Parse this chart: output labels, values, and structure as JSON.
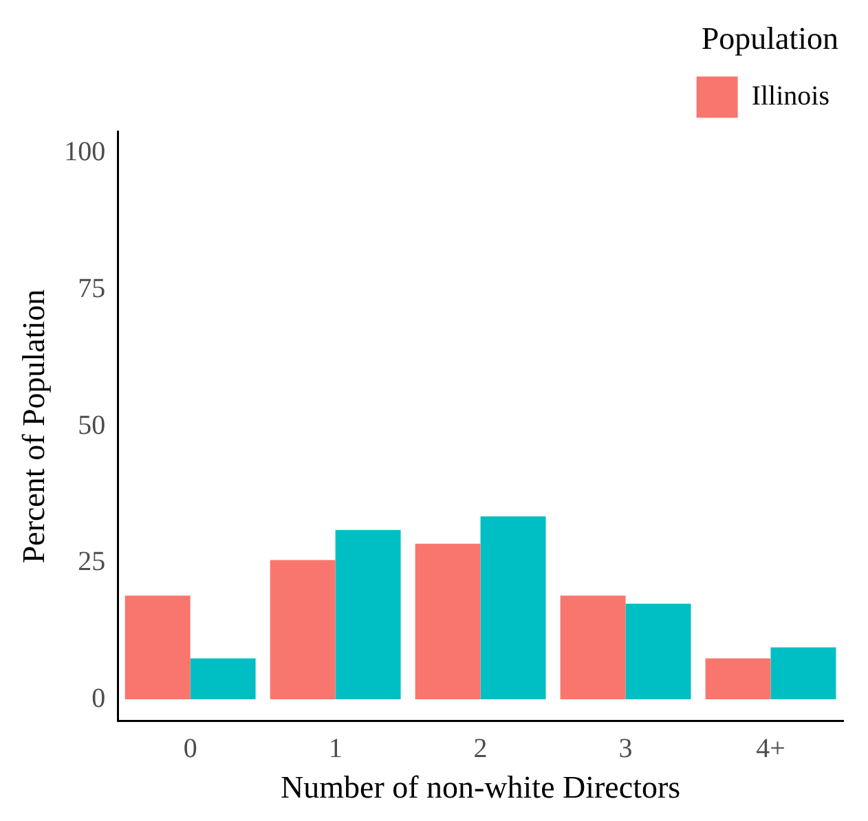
{
  "chart_data": {
    "type": "bar",
    "xlabel": "Number of non-white Directors",
    "ylabel": "Percent of Population",
    "legend_title": "Population",
    "categories": [
      "0",
      "1",
      "2",
      "3",
      "4+"
    ],
    "series": [
      {
        "name": "Illinois",
        "color": "#f8766d",
        "values": [
          19,
          25.5,
          28.5,
          19,
          7.5
        ]
      },
      {
        "color": "#00bfc4",
        "values": [
          7.5,
          31,
          33.5,
          17.5,
          9.5
        ]
      }
    ],
    "ylim": [
      -4,
      104
    ],
    "yticks": [
      0,
      25,
      50,
      75,
      100
    ],
    "grid": false,
    "legend": "top right"
  }
}
